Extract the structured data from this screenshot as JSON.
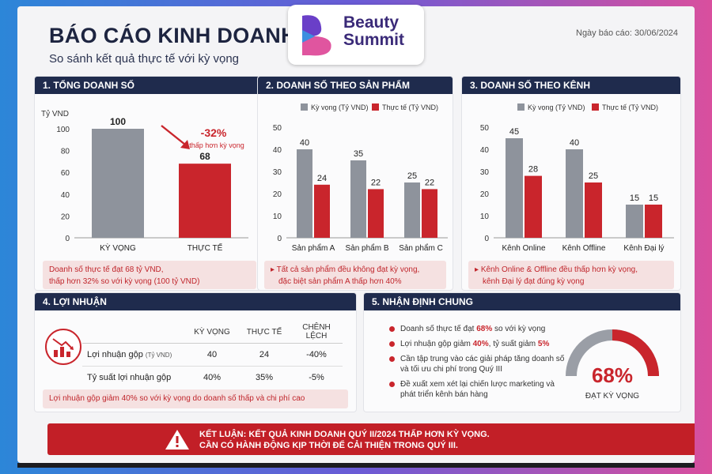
{
  "header": {
    "title": "BÁO CÁO KINH DOANH QUÝ II/2024",
    "subtitle": "So sánh kết quả thực tế với kỳ vọng",
    "report_date": "Ngày báo cáo:  30/06/2024"
  },
  "logo": {
    "line1": "Beauty",
    "line2": "Summit"
  },
  "panel1": {
    "heading": "1. TỔNG DOANH SỐ",
    "change_label": "-32%",
    "change_note": "thấp hơn kỳ vọng",
    "note_line1": "Doanh số thực tế đạt 68 tỷ VND,",
    "note_line2": "thấp hơn 32% so với kỳ vọng (100 tỷ VND)"
  },
  "panel2": {
    "heading": "2. DOANH SỐ THEO SẢN PHẨM",
    "note_line1": "Tất cả sản phẩm đều không đạt kỳ vọng,",
    "note_line2": "đặc biệt sản phẩm A thấp hơn 40%"
  },
  "panel3": {
    "heading": "3. DOANH SỐ THEO KÊNH",
    "note_line1": "Kênh Online & Offline đều thấp hơn kỳ vọng,",
    "note_line2": "kênh Đại lý đạt đúng kỳ vọng"
  },
  "panel4": {
    "heading": "4. LỢI NHUẬN",
    "columns": [
      "KỲ VỌNG",
      "THỰC TẾ",
      "CHÊNH LỆCH"
    ],
    "rows": [
      {
        "label": "Lợi nhuận gộp",
        "unit": "(Tỷ VND)",
        "expected": "40",
        "actual": "24",
        "diff": "-40%"
      },
      {
        "label": "Tỷ suất lợi nhuận gộp",
        "unit": "",
        "expected": "40%",
        "actual": "35%",
        "diff": "-5%"
      }
    ],
    "note": "Lợi nhuận gộp giảm 40% so với kỳ vọng do doanh số thấp và chi phí cao"
  },
  "panel5": {
    "heading": "5. NHẬN ĐỊNH CHUNG",
    "items": [
      [
        "Doanh số thực tế đạt ",
        "68%",
        " so với kỳ vọng"
      ],
      [
        "Lợi nhuận gộp giảm ",
        "40%",
        ", tỷ suất giảm ",
        "5%"
      ],
      [
        "Cần tập trung vào các giải pháp tăng doanh số và tối ưu chi phí trong Quý III"
      ],
      [
        "Đề xuất xem xét lại chiến lược marketing và phát triển kênh bán hàng"
      ]
    ],
    "gauge_value": "68%",
    "gauge_label": "ĐẠT KỲ VỌNG",
    "gauge_fraction": 0.68
  },
  "conclusion": {
    "line1": "Kết luận:  Kết quả kinh doanh Quý II/2024 thấp hơn kỳ vọng.",
    "line2": "Cần có hành động kịp thời để cải thiện trong Quý III."
  },
  "colors": {
    "expected": "#8e939c",
    "actual": "#c9252c",
    "header": "#1f2b4d"
  },
  "chart_data": [
    {
      "type": "bar",
      "title": "1. TỔNG DOANH SỐ",
      "ylabel": "Tỷ VND",
      "categories": [
        "KỲ VỌNG",
        "THỰC TẾ"
      ],
      "values": [
        100,
        68
      ],
      "ylim": [
        0,
        100
      ],
      "yticks": [
        0,
        20,
        40,
        60,
        80,
        100
      ]
    },
    {
      "type": "bar",
      "title": "2. DOANH SỐ THEO SẢN PHẨM",
      "categories": [
        "Sản phẩm A",
        "Sản phẩm B",
        "Sản phẩm C"
      ],
      "series": [
        {
          "name": "Kỳ vọng (Tỷ VND)",
          "values": [
            40,
            35,
            25
          ]
        },
        {
          "name": "Thực tế (Tỷ VND)",
          "values": [
            24,
            22,
            22
          ]
        }
      ],
      "ylim": [
        0,
        50
      ],
      "yticks": [
        0,
        10,
        20,
        30,
        40,
        50
      ],
      "legend": "top"
    },
    {
      "type": "bar",
      "title": "3. DOANH SỐ THEO KÊNH",
      "categories": [
        "Kênh Online",
        "Kênh Offline",
        "Kênh Đại lý"
      ],
      "series": [
        {
          "name": "Kỳ vọng (Tỷ VND)",
          "values": [
            45,
            40,
            15
          ]
        },
        {
          "name": "Thực tế (Tỷ VND)",
          "values": [
            28,
            25,
            15
          ]
        }
      ],
      "ylim": [
        0,
        50
      ],
      "yticks": [
        0,
        10,
        20,
        30,
        40,
        50
      ],
      "legend": "top"
    }
  ]
}
